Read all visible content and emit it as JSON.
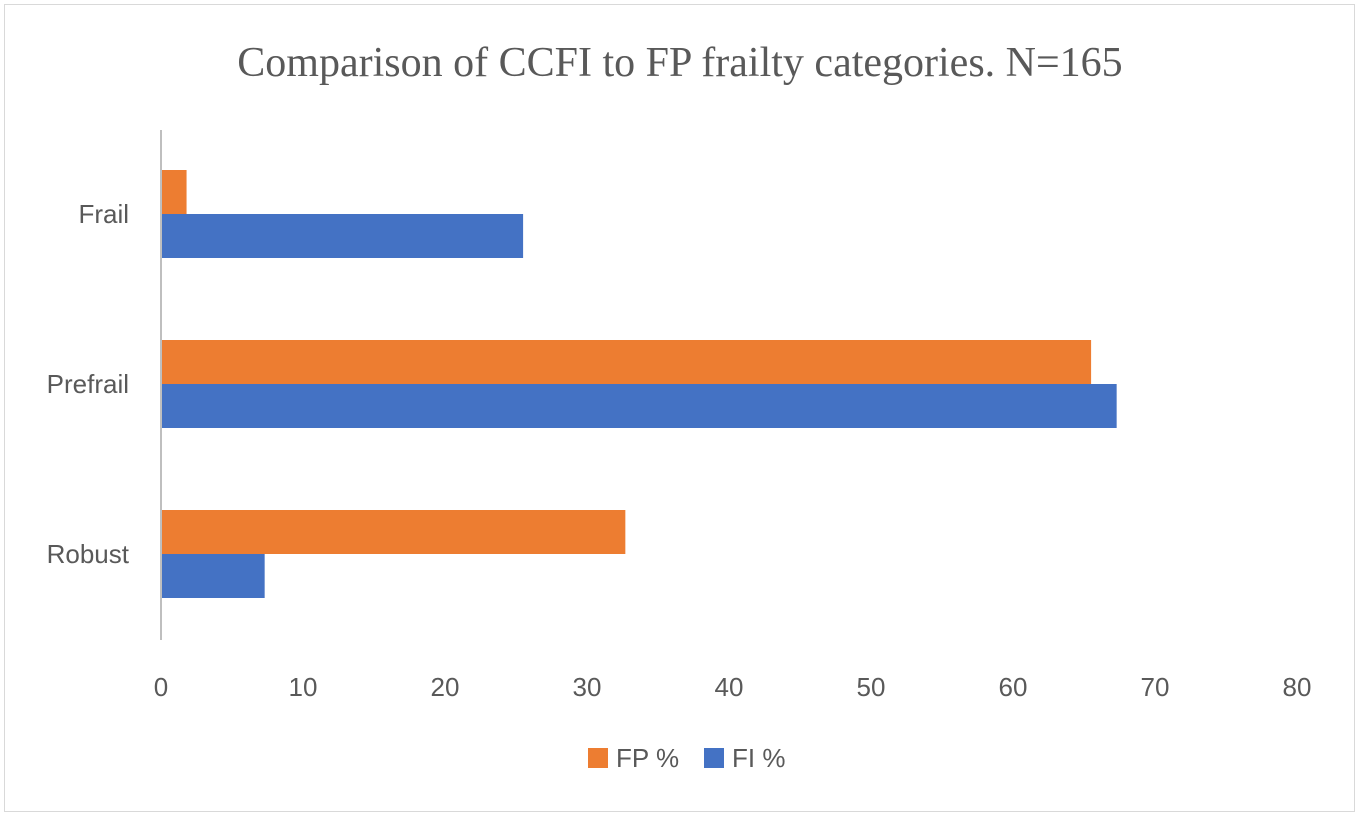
{
  "chart_data": {
    "type": "bar",
    "orientation": "horizontal",
    "title": "Comparison of CCFI to FP frailty categories. N=165",
    "categories": [
      "Frail",
      "Prefrail",
      "Robust"
    ],
    "series": [
      {
        "name": "FP %",
        "color": "#ED7D31",
        "values": [
          1.8,
          65.5,
          32.7
        ]
      },
      {
        "name": "FI %",
        "color": "#4472C4",
        "values": [
          25.5,
          67.3,
          7.3
        ]
      }
    ],
    "xlim": [
      0,
      80
    ],
    "xticks": [
      "0",
      "10",
      "20",
      "30",
      "40",
      "50",
      "60",
      "70",
      "80"
    ],
    "grid": false,
    "legend_position": "bottom"
  }
}
